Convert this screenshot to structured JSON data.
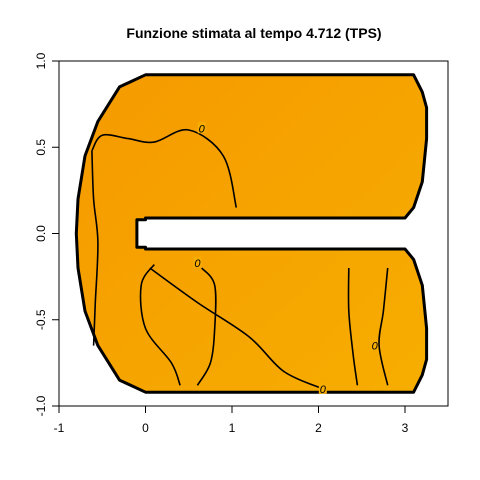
{
  "chart_data": {
    "type": "heatmap",
    "title": "Funzione stimata al tempo 4.712 (TPS)",
    "xlabel": "",
    "ylabel": "",
    "xlim": [
      -1,
      3.5
    ],
    "ylim": [
      -1,
      1
    ],
    "x_ticks": [
      -1,
      0,
      1,
      2,
      3
    ],
    "x_tick_labels": [
      "-1",
      "0",
      "1",
      "2",
      "3"
    ],
    "y_ticks": [
      -1,
      -0.5,
      0,
      0.5,
      1
    ],
    "y_tick_labels": [
      "-1.0",
      "-0.5",
      "0.0",
      "0.5",
      "1.0"
    ],
    "grid": false,
    "legend": "none",
    "fill_colors": {
      "low": "#f59a00",
      "high": "#f7ad00"
    },
    "domain_shape": "C-shaped horseshoe domain",
    "boundary": [
      [
        -0.1,
        0.08
      ],
      [
        0,
        0.08
      ],
      [
        0,
        0.09
      ],
      [
        3.0,
        0.09
      ],
      [
        3.1,
        0.15
      ],
      [
        3.2,
        0.3
      ],
      [
        3.25,
        0.55
      ],
      [
        3.25,
        0.73
      ],
      [
        3.2,
        0.82
      ],
      [
        3.1,
        0.92
      ],
      [
        0,
        0.92
      ],
      [
        -0.3,
        0.85
      ],
      [
        -0.55,
        0.65
      ],
      [
        -0.7,
        0.45
      ],
      [
        -0.78,
        0.2
      ],
      [
        -0.8,
        0.0
      ],
      [
        -0.78,
        -0.2
      ],
      [
        -0.7,
        -0.45
      ],
      [
        -0.55,
        -0.65
      ],
      [
        -0.3,
        -0.85
      ],
      [
        0,
        -0.92
      ],
      [
        3.1,
        -0.92
      ],
      [
        3.2,
        -0.82
      ],
      [
        3.25,
        -0.73
      ],
      [
        3.25,
        -0.55
      ],
      [
        3.2,
        -0.3
      ],
      [
        3.1,
        -0.15
      ],
      [
        3.0,
        -0.09
      ],
      [
        0,
        -0.09
      ],
      [
        0,
        -0.08
      ],
      [
        -0.1,
        -0.08
      ]
    ],
    "contours": [
      {
        "level": "0",
        "label_at": [
          0.65,
          0.61
        ],
        "points": [
          [
            -0.62,
            0.48
          ],
          [
            -0.5,
            0.57
          ],
          [
            -0.2,
            0.55
          ],
          [
            0.1,
            0.53
          ],
          [
            0.5,
            0.6
          ],
          [
            0.9,
            0.45
          ],
          [
            1.05,
            0.15
          ]
        ]
      },
      {
        "level": "",
        "label_at": null,
        "points": [
          [
            -0.62,
            0.48
          ],
          [
            -0.6,
            0.2
          ],
          [
            -0.55,
            -0.05
          ],
          [
            -0.58,
            -0.4
          ],
          [
            -0.6,
            -0.65
          ]
        ]
      },
      {
        "level": "0",
        "label_at": [
          0.6,
          -0.17
        ],
        "points": [
          [
            0.1,
            -0.18
          ],
          [
            -0.05,
            -0.3
          ],
          [
            0.0,
            -0.55
          ],
          [
            0.3,
            -0.75
          ],
          [
            0.4,
            -0.88
          ]
        ]
      },
      {
        "level": "",
        "label_at": null,
        "points": [
          [
            0.65,
            -0.2
          ],
          [
            0.8,
            -0.3
          ],
          [
            0.8,
            -0.55
          ],
          [
            0.75,
            -0.75
          ],
          [
            0.6,
            -0.88
          ]
        ]
      },
      {
        "level": "0",
        "label_at": [
          2.05,
          -0.9
        ],
        "points": [
          [
            0.05,
            -0.2
          ],
          [
            0.6,
            -0.4
          ],
          [
            1.2,
            -0.6
          ],
          [
            1.6,
            -0.8
          ],
          [
            2.05,
            -0.9
          ]
        ]
      },
      {
        "level": "0",
        "label_at": [
          2.65,
          -0.65
        ],
        "points": [
          [
            2.35,
            -0.2
          ],
          [
            2.35,
            -0.45
          ],
          [
            2.4,
            -0.7
          ],
          [
            2.45,
            -0.88
          ]
        ]
      },
      {
        "level": "",
        "label_at": null,
        "points": [
          [
            2.8,
            -0.2
          ],
          [
            2.75,
            -0.45
          ],
          [
            2.7,
            -0.65
          ],
          [
            2.8,
            -0.88
          ]
        ]
      }
    ]
  }
}
